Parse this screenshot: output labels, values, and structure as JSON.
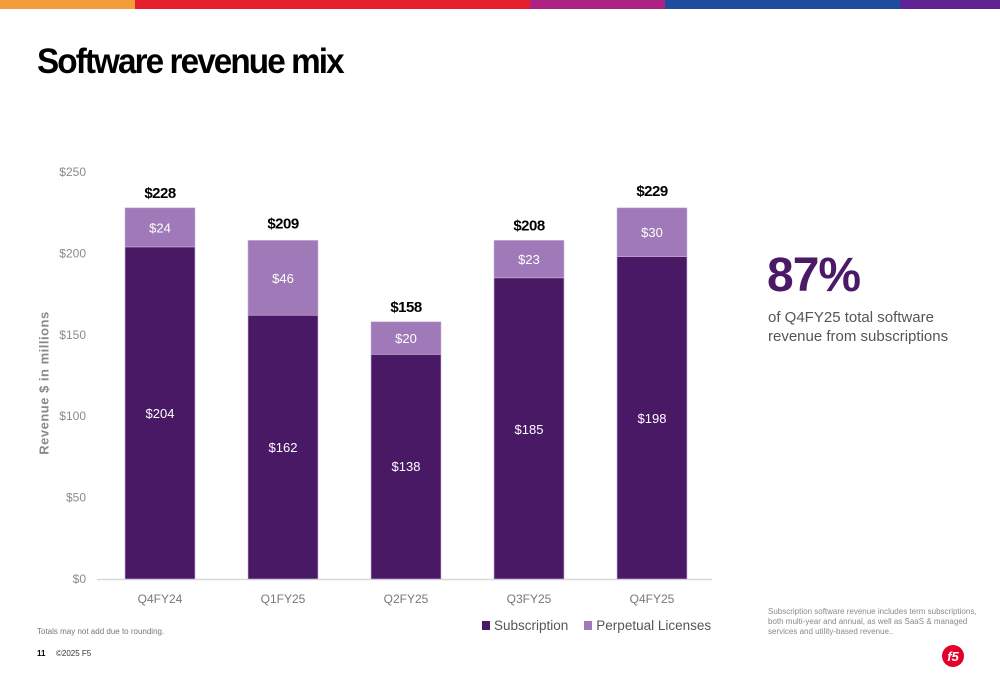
{
  "topbar_colors": [
    "#f39c39",
    "#e51f2c",
    "#ad2383",
    "#1f4c9e",
    "#5f2393"
  ],
  "header": {
    "title": "Software revenue mix"
  },
  "chart_data": {
    "type": "bar",
    "stacked": true,
    "title": "",
    "xlabel": "",
    "ylabel": "Revenue $ in millions",
    "ylim": [
      0,
      250
    ],
    "yticks": [
      0,
      50,
      100,
      150,
      200,
      250
    ],
    "ytick_labels": [
      "$0",
      "$50",
      "$100",
      "$150",
      "$200",
      "$250"
    ],
    "grid": false,
    "legend_position": "bottom-right",
    "categories": [
      "Q4FY24",
      "Q1FY25",
      "Q2FY25",
      "Q3FY25",
      "Q4FY25"
    ],
    "series": [
      {
        "name": "Subscription",
        "color": "#4a1966",
        "values": [
          204,
          162,
          138,
          185,
          198
        ],
        "labels": [
          "$204",
          "$162",
          "$138",
          "$185",
          "$198"
        ]
      },
      {
        "name": "Perpetual Licenses",
        "color": "#a07ab8",
        "values": [
          24,
          46,
          20,
          23,
          30
        ],
        "labels": [
          "$24",
          "$46",
          "$20",
          "$23",
          "$30"
        ]
      }
    ],
    "totals": [
      228,
      209,
      158,
      208,
      229
    ],
    "total_labels": [
      "$228",
      "$209",
      "$158",
      "$208",
      "$229"
    ]
  },
  "legend": {
    "items": [
      {
        "label": "Subscription",
        "color": "#4a1966"
      },
      {
        "label": "Perpetual Licenses",
        "color": "#a07ab8"
      }
    ]
  },
  "kpi": {
    "value": "87%",
    "description": "of Q4FY25 total software revenue from subscriptions"
  },
  "side_note": "Subscription software revenue includes term subscriptions, both multi-year and annual, as well as SaaS & managed services and utility-based revenue..",
  "footer": {
    "footnote": "Totals may not add due to rounding.",
    "page_number": "11",
    "copyright": "©2025 F5",
    "logo_text": "f5"
  }
}
